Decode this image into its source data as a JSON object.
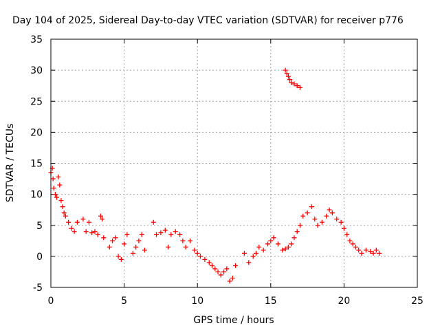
{
  "chart_data": {
    "type": "scatter",
    "title": "Day 104 of 2025, Sidereal Day-to-day VTEC variation (SDTVAR) for receiver p776",
    "xlabel": "GPS time / hours",
    "ylabel": "SDTVAR / TECUs",
    "xlim": [
      0,
      25
    ],
    "ylim": [
      -5,
      35
    ],
    "xticks": [
      0,
      5,
      10,
      15,
      20,
      25
    ],
    "yticks": [
      -5,
      0,
      5,
      10,
      15,
      20,
      25,
      30,
      35
    ],
    "xtick_labels": [
      "0",
      "5",
      "10",
      "15",
      "20",
      "25"
    ],
    "ytick_labels": [
      "-5",
      "0",
      "5",
      "10",
      "15",
      "20",
      "25",
      "30",
      "35"
    ],
    "grid": true,
    "marker": "+",
    "series": [
      {
        "name": "SDTVAR",
        "color": "#ff0000",
        "x": [
          0.0,
          0.1,
          0.15,
          0.2,
          0.3,
          0.4,
          0.5,
          0.6,
          0.7,
          0.8,
          0.9,
          1.0,
          1.2,
          1.4,
          1.6,
          1.8,
          2.2,
          2.4,
          2.6,
          2.8,
          3.0,
          3.2,
          3.4,
          3.5,
          3.6,
          4.0,
          4.2,
          4.4,
          4.6,
          4.8,
          5.0,
          5.2,
          5.6,
          5.8,
          6.0,
          6.2,
          6.4,
          7.0,
          7.2,
          7.5,
          7.8,
          8.0,
          8.2,
          8.5,
          8.8,
          9.0,
          9.2,
          9.5,
          9.8,
          10.0,
          10.2,
          10.5,
          10.8,
          11.0,
          11.2,
          11.4,
          11.6,
          11.8,
          12.0,
          12.2,
          12.4,
          12.6,
          13.2,
          13.5,
          13.8,
          14.0,
          14.2,
          14.5,
          14.8,
          15.0,
          15.2,
          15.5,
          15.8,
          16.0,
          16.2,
          16.4,
          16.6,
          16.8,
          17.0,
          17.2,
          17.5,
          17.8,
          18.0,
          18.2,
          18.5,
          18.8,
          19.0,
          19.2,
          19.5,
          19.8,
          20.0,
          20.2,
          20.4,
          20.6,
          20.8,
          21.0,
          21.2,
          21.5,
          21.8,
          22.0,
          22.2,
          22.4,
          16.0,
          16.1,
          16.2,
          16.3,
          16.4,
          16.6,
          16.8,
          17.0
        ],
        "y": [
          13.5,
          14.2,
          12.5,
          11.0,
          10.0,
          9.5,
          12.8,
          11.5,
          9.0,
          8.0,
          7.0,
          6.5,
          5.5,
          4.5,
          4.0,
          5.5,
          6.0,
          4.0,
          5.5,
          3.8,
          4.0,
          3.5,
          6.5,
          6.0,
          3.0,
          1.5,
          2.5,
          3.0,
          0.0,
          -0.5,
          2.0,
          3.5,
          0.5,
          1.5,
          2.5,
          3.5,
          1.0,
          5.5,
          3.5,
          3.8,
          4.2,
          1.5,
          3.5,
          4.0,
          3.5,
          2.5,
          1.5,
          2.5,
          1.0,
          0.5,
          0.0,
          -0.5,
          -1.0,
          -1.5,
          -2.0,
          -2.5,
          -3.0,
          -2.5,
          -2.0,
          -4.0,
          -3.5,
          -1.5,
          0.5,
          -1.0,
          0.0,
          0.5,
          1.5,
          1.0,
          2.0,
          2.5,
          3.0,
          2.0,
          1.0,
          1.2,
          1.5,
          2.0,
          3.0,
          4.0,
          5.0,
          6.5,
          7.0,
          8.0,
          6.0,
          5.0,
          5.5,
          6.5,
          7.5,
          7.0,
          6.0,
          5.5,
          4.5,
          3.5,
          2.5,
          2.0,
          1.5,
          1.0,
          0.5,
          1.0,
          0.8,
          0.5,
          1.0,
          0.5,
          30.0,
          29.5,
          29.0,
          28.5,
          28.0,
          27.8,
          27.5,
          27.2
        ]
      }
    ]
  }
}
